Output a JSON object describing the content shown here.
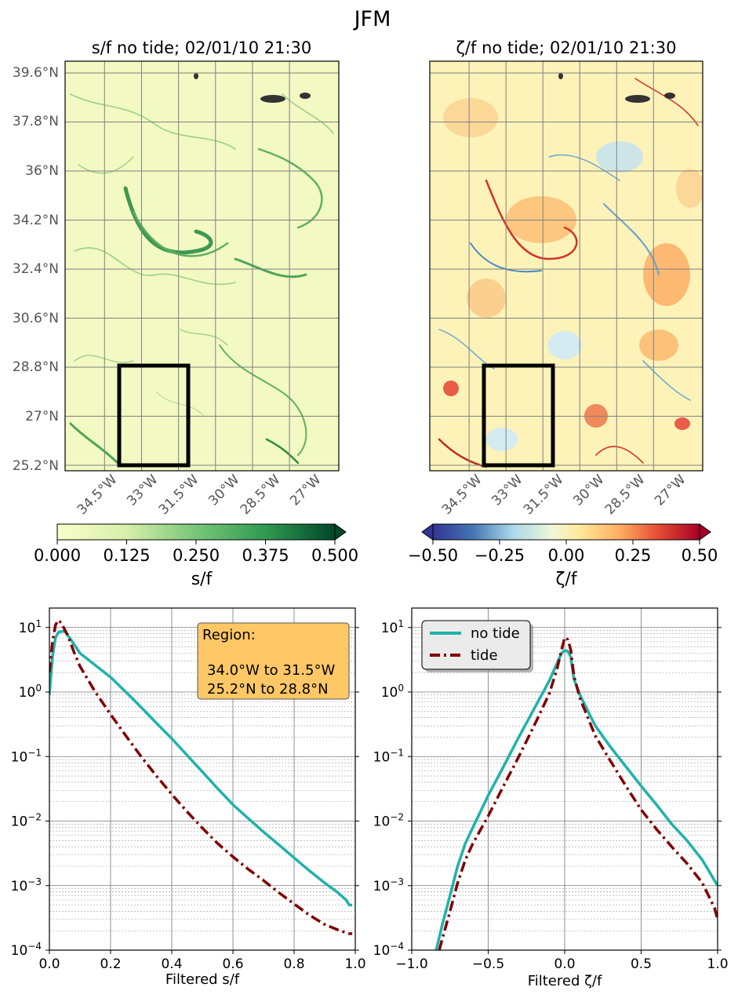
{
  "suptitle": "JFM",
  "colors": {
    "no_tide": "#20b2aa",
    "tide": "#800000",
    "box": "#000000",
    "legend_bg": "#ebebeb",
    "region_bg": "#ffc766"
  },
  "chart_data": [
    {
      "type": "heatmap",
      "title": "s/f no tide; 02/01/10 21:30",
      "variable": "s/f",
      "colormap": "Greens",
      "grid": true,
      "lat_ticks": [
        "39.6°N",
        "37.8°N",
        "36°N",
        "34.2°N",
        "32.4°N",
        "30.6°N",
        "28.8°N",
        "27°N",
        "25.2°N"
      ],
      "lat_values": [
        39.6,
        37.8,
        36.0,
        34.2,
        32.4,
        30.6,
        28.8,
        27.0,
        25.2
      ],
      "lon_ticks": [
        "34.5°W",
        "33°W",
        "31.5°W",
        "30°W",
        "28.5°W",
        "27°W"
      ],
      "lon_values": [
        -34.5,
        -33,
        -31.5,
        -30,
        -28.5,
        -27
      ],
      "region_box": {
        "lon": [
          -34.0,
          -31.5
        ],
        "lat": [
          25.2,
          28.8
        ]
      },
      "colorbar": {
        "label": "s/f",
        "ticks": [
          "0.000",
          "0.125",
          "0.250",
          "0.375",
          "0.500"
        ],
        "range": [
          0,
          0.5
        ],
        "extend": "max"
      }
    },
    {
      "type": "heatmap",
      "title": "ζ/f no tide; 02/01/10 21:30",
      "variable": "ζ/f",
      "colormap": "RdYlBu_r",
      "grid": true,
      "lon_ticks": [
        "34.5°W",
        "33°W",
        "31.5°W",
        "30°W",
        "28.5°W",
        "27°W"
      ],
      "lon_values": [
        -34.5,
        -33,
        -31.5,
        -30,
        -28.5,
        -27
      ],
      "region_box": {
        "lon": [
          -34.0,
          -31.5
        ],
        "lat": [
          25.2,
          28.8
        ]
      },
      "colorbar": {
        "label": "ζ/f",
        "ticks": [
          "−0.50",
          "−0.25",
          "0.00",
          "0.25",
          "0.50"
        ],
        "range": [
          -0.5,
          0.5
        ],
        "extend": "both"
      }
    },
    {
      "type": "line",
      "xlabel": "Filtered s/f",
      "ylabel": "",
      "xlim": [
        0,
        1
      ],
      "ylim": [
        0.0001,
        20
      ],
      "yscale": "log",
      "grid": true,
      "x_ticks": [
        "0.0",
        "0.2",
        "0.4",
        "0.6",
        "0.8",
        "1.0"
      ],
      "y_ticks": [
        "10^1",
        "10^0",
        "10^−1",
        "10^−2",
        "10^−3",
        "10^−4"
      ],
      "annotation": {
        "heading": "Region:",
        "line1": "34.0°W to 31.5°W",
        "line2": "25.2°N to 28.8°N"
      },
      "series": [
        {
          "color_key": "no_tide",
          "style": "solid",
          "x": [
            0.0,
            0.01,
            0.02,
            0.03,
            0.05,
            0.07,
            0.1,
            0.15,
            0.2,
            0.25,
            0.3,
            0.35,
            0.4,
            0.45,
            0.5,
            0.55,
            0.6,
            0.65,
            0.7,
            0.75,
            0.8,
            0.85,
            0.9,
            0.94,
            0.97,
            0.98,
            0.99
          ],
          "y": [
            0.9,
            3.5,
            7.0,
            8.5,
            8.8,
            6.5,
            4.0,
            2.6,
            1.7,
            1.0,
            0.58,
            0.33,
            0.19,
            0.105,
            0.058,
            0.032,
            0.018,
            0.011,
            0.0068,
            0.0043,
            0.0027,
            0.0017,
            0.0011,
            0.0008,
            0.0006,
            0.0005,
            0.0005
          ]
        },
        {
          "color_key": "tide",
          "style": "dashdot",
          "x": [
            0.0,
            0.01,
            0.02,
            0.03,
            0.04,
            0.06,
            0.08,
            0.1,
            0.15,
            0.2,
            0.25,
            0.3,
            0.35,
            0.4,
            0.45,
            0.5,
            0.55,
            0.6,
            0.65,
            0.7,
            0.75,
            0.8,
            0.85,
            0.9,
            0.95,
            0.98,
            0.99
          ],
          "y": [
            2.0,
            6.0,
            11.0,
            13.0,
            11.5,
            7.5,
            4.2,
            2.5,
            1.0,
            0.45,
            0.21,
            0.1,
            0.05,
            0.026,
            0.014,
            0.0078,
            0.0045,
            0.0028,
            0.0018,
            0.0012,
            0.00078,
            0.00052,
            0.00035,
            0.00025,
            0.0002,
            0.00018,
            0.00018
          ]
        }
      ]
    },
    {
      "type": "line",
      "xlabel": "Filtered ζ/f",
      "ylabel": "",
      "xlim": [
        -1,
        1
      ],
      "ylim": [
        0.0001,
        20
      ],
      "yscale": "log",
      "grid": true,
      "x_ticks": [
        "−1.0",
        "−0.5",
        "0.0",
        "0.5",
        "1.0"
      ],
      "y_ticks": [
        "10^1",
        "10^0",
        "10^−1",
        "10^−2",
        "10^−3",
        "10^−4"
      ],
      "legend": {
        "placement": "top-left",
        "entries": [
          "no tide",
          "tide"
        ]
      },
      "series": [
        {
          "name": "no tide",
          "color_key": "no_tide",
          "style": "solid",
          "x": [
            -0.84,
            -0.8,
            -0.75,
            -0.7,
            -0.65,
            -0.6,
            -0.5,
            -0.4,
            -0.3,
            -0.2,
            -0.1,
            -0.05,
            -0.02,
            0.0,
            0.02,
            0.04,
            0.06,
            0.1,
            0.2,
            0.3,
            0.4,
            0.5,
            0.6,
            0.7,
            0.8,
            0.9,
            1.0
          ],
          "y": [
            0.0001,
            0.00025,
            0.0007,
            0.002,
            0.0045,
            0.008,
            0.025,
            0.07,
            0.2,
            0.55,
            1.5,
            2.8,
            4.0,
            4.4,
            4.3,
            3.5,
            1.6,
            0.9,
            0.3,
            0.14,
            0.07,
            0.035,
            0.018,
            0.009,
            0.005,
            0.0025,
            0.001
          ]
        },
        {
          "name": "tide",
          "color_key": "tide",
          "style": "dashdot",
          "x": [
            -0.82,
            -0.8,
            -0.75,
            -0.7,
            -0.65,
            -0.6,
            -0.5,
            -0.4,
            -0.3,
            -0.2,
            -0.1,
            -0.05,
            -0.02,
            0.0,
            0.02,
            0.04,
            0.06,
            0.1,
            0.2,
            0.3,
            0.4,
            0.5,
            0.6,
            0.7,
            0.8,
            0.9,
            0.98,
            1.0
          ],
          "y": [
            0.0001,
            0.00015,
            0.0004,
            0.0011,
            0.0025,
            0.0045,
            0.012,
            0.035,
            0.1,
            0.3,
            0.95,
            2.3,
            4.5,
            7.0,
            6.5,
            4.5,
            1.8,
            0.8,
            0.21,
            0.085,
            0.035,
            0.015,
            0.0075,
            0.004,
            0.0022,
            0.0011,
            0.00045,
            0.0003
          ]
        }
      ]
    }
  ]
}
